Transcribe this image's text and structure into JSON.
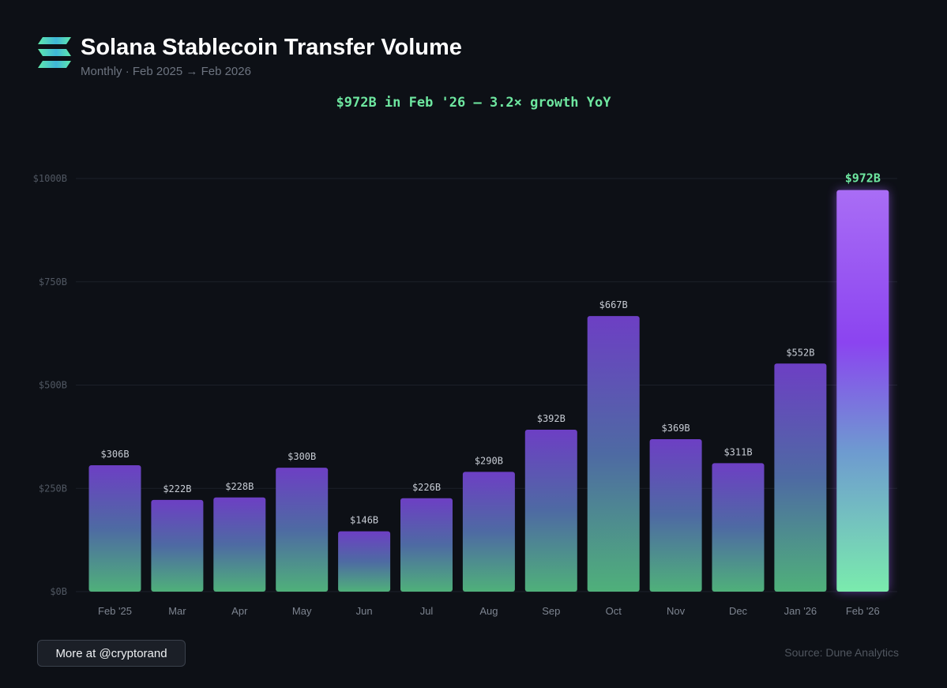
{
  "header": {
    "title": "Solana Stablecoin Transfer Volume",
    "subtitle": "Monthly · Feb 2025 → Feb 2026",
    "headline": "$972B in Feb '26 — 3.2× growth YoY",
    "logo_icon": "solana-logo-icon"
  },
  "footer": {
    "more_label": "More at @cryptorand",
    "source": "Source: Dune Analytics"
  },
  "colors": {
    "background": "#0d1016",
    "accent_green": "#6ee7a0",
    "bar_top": "#6d3fc4",
    "bar_bottom": "#4fb07a",
    "highlight_top": "#a96df5",
    "highlight_mid": "#8b44f0",
    "highlight_bottom": "#7aebad"
  },
  "chart_data": {
    "type": "bar",
    "title": "Solana Stablecoin Transfer Volume",
    "xlabel": "",
    "ylabel": "",
    "grid": true,
    "ylim": [
      0,
      1000
    ],
    "yticks": [
      0,
      250,
      500,
      750,
      1000
    ],
    "ytick_labels": [
      "$0B",
      "$250B",
      "$500B",
      "$750B",
      "$1000B"
    ],
    "categories": [
      "Feb '25",
      "Mar",
      "Apr",
      "May",
      "Jun",
      "Jul",
      "Aug",
      "Sep",
      "Oct",
      "Nov",
      "Dec",
      "Jan '26",
      "Feb '26"
    ],
    "values": [
      306,
      222,
      228,
      300,
      146,
      226,
      290,
      392,
      667,
      369,
      311,
      552,
      972
    ],
    "value_labels": [
      "$306B",
      "$222B",
      "$228B",
      "$300B",
      "$146B",
      "$226B",
      "$290B",
      "$392B",
      "$667B",
      "$369B",
      "$311B",
      "$552B",
      "$972B"
    ],
    "highlight_index": 12
  }
}
